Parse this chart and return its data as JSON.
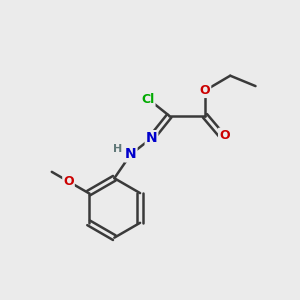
{
  "bg_color": "#ebebeb",
  "bond_color": "#3a3a3a",
  "bond_lw": 1.8,
  "atom_colors": {
    "Cl": "#00aa00",
    "O": "#cc0000",
    "N": "#0000cc",
    "H": "#607878"
  },
  "font_size": 10,
  "figsize": [
    3.0,
    3.0
  ],
  "dpi": 100
}
